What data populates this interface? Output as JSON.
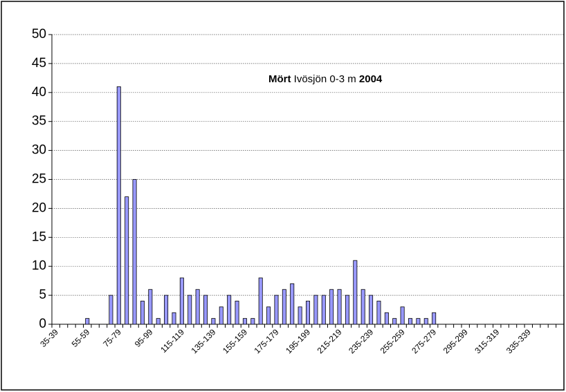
{
  "chart_data": {
    "type": "bar",
    "title_parts": [
      "Mört",
      "Ivösjön 0-3 m",
      "2004"
    ],
    "categories": [
      "35-39",
      null,
      null,
      null,
      "55-59",
      null,
      null,
      null,
      "75-79",
      null,
      null,
      null,
      "95-99",
      null,
      null,
      null,
      "115-119",
      null,
      null,
      null,
      "135-139",
      null,
      null,
      null,
      "155-159",
      null,
      null,
      null,
      "175-179",
      null,
      null,
      null,
      "195-199",
      null,
      null,
      null,
      "215-219",
      null,
      null,
      null,
      "235-239",
      null,
      null,
      null,
      "255-259",
      null,
      null,
      null,
      "275-279",
      null,
      null,
      null,
      "295-299",
      null,
      null,
      null,
      "315-319",
      null,
      null,
      null,
      "335-339",
      null,
      null,
      null,
      null
    ],
    "values": [
      0,
      0,
      0,
      0,
      1,
      0,
      0,
      5,
      41,
      22,
      25,
      4,
      6,
      1,
      5,
      2,
      8,
      5,
      6,
      5,
      1,
      3,
      5,
      4,
      1,
      1,
      8,
      3,
      5,
      6,
      7,
      3,
      4,
      5,
      5,
      6,
      6,
      5,
      11,
      6,
      5,
      4,
      2,
      1,
      3,
      1,
      1,
      1,
      2,
      0,
      0,
      0,
      0,
      0,
      0,
      0,
      0,
      0,
      0,
      0,
      0,
      0,
      0,
      0,
      0
    ],
    "color": "#9999ff",
    "ylim": [
      0,
      50
    ],
    "yticks": [
      0,
      5,
      10,
      15,
      20,
      25,
      30,
      35,
      40,
      45,
      50
    ],
    "grid": true
  }
}
